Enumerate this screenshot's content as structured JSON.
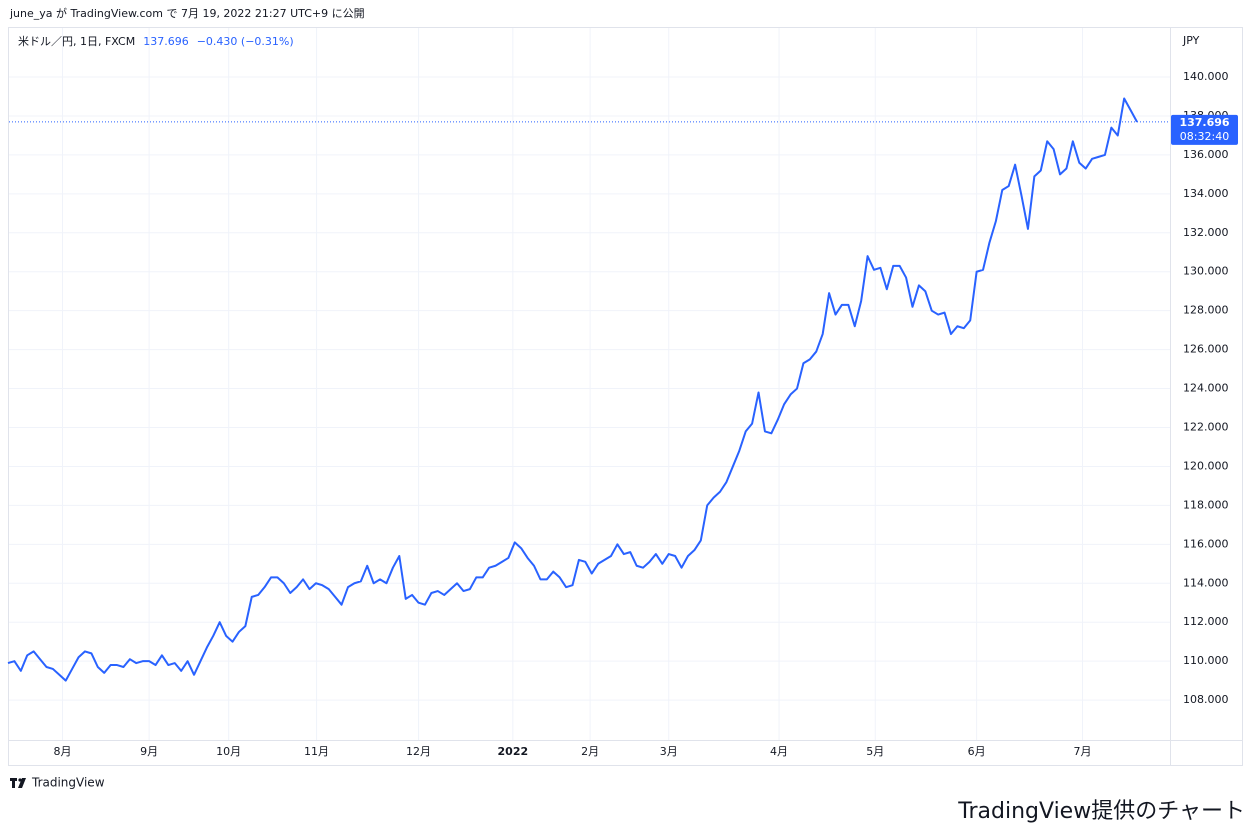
{
  "header": "june_ya が TradingView.com で 7月 19, 2022 21:27 UTC+9 に公開",
  "logo": "TradingView",
  "footer": "TradingView提供のチャート",
  "chart_data": {
    "type": "line",
    "symbol": "米ドル／円, 1日, FXCM",
    "change": "−0.430 (−0.31%)",
    "currency": "JPY",
    "countdown": "08:32:40",
    "color": "#2962ff",
    "grid": true,
    "categories": [
      null,
      null,
      null,
      null,
      null,
      null,
      null,
      null,
      null,
      null,
      null,
      null,
      null,
      null,
      null,
      null,
      null,
      null,
      null,
      null,
      null,
      null,
      null,
      null,
      null,
      null,
      null,
      null,
      null,
      null,
      null,
      null,
      null,
      null,
      null,
      null,
      null,
      null,
      null,
      null,
      null,
      null,
      null,
      null,
      null,
      null,
      null,
      null,
      null,
      null,
      null,
      null,
      null,
      null,
      null,
      null,
      null,
      null,
      null,
      null,
      null,
      null,
      null,
      null,
      null,
      null,
      null,
      null,
      null,
      null,
      null,
      null,
      null,
      null,
      null,
      null,
      null,
      null,
      null,
      null,
      null,
      null,
      null,
      null,
      null,
      null,
      null,
      null,
      null,
      null,
      null,
      null,
      null,
      null,
      null,
      null,
      null,
      null,
      null,
      null,
      null,
      null,
      null,
      null,
      null,
      null,
      null,
      null,
      null,
      null,
      null,
      null,
      null,
      null,
      null,
      null,
      null,
      null,
      null,
      null,
      null,
      null,
      null,
      null,
      null,
      null,
      null,
      null,
      null,
      null,
      null,
      null,
      null,
      null,
      null,
      null,
      null,
      null,
      null,
      null,
      null,
      null,
      null,
      null,
      null,
      null,
      null,
      null,
      null,
      null,
      null,
      null,
      null,
      null,
      null,
      null,
      null,
      null,
      null,
      null,
      null,
      null,
      null,
      null,
      null,
      null,
      null,
      null,
      null,
      null,
      null,
      null,
      null,
      null,
      null,
      null,
      null
    ],
    "values": [
      109.9,
      110.0,
      109.5,
      110.3,
      110.5,
      110.1,
      109.7,
      109.6,
      109.3,
      109.0,
      109.6,
      110.2,
      110.5,
      110.4,
      109.7,
      109.4,
      109.8,
      109.8,
      109.7,
      110.1,
      109.9,
      110.0,
      110.0,
      109.8,
      110.3,
      109.8,
      109.9,
      109.5,
      110.0,
      109.3,
      110.0,
      110.7,
      111.3,
      112.0,
      111.3,
      111.0,
      111.5,
      111.8,
      113.3,
      113.4,
      113.8,
      114.3,
      114.3,
      114.0,
      113.5,
      113.8,
      114.2,
      113.7,
      114.0,
      113.9,
      113.7,
      113.3,
      112.9,
      113.8,
      114.0,
      114.1,
      114.9,
      114.0,
      114.2,
      114.0,
      114.8,
      115.4,
      113.2,
      113.4,
      113.0,
      112.9,
      113.5,
      113.6,
      113.4,
      113.7,
      114.0,
      113.6,
      113.7,
      114.3,
      114.3,
      114.8,
      114.9,
      115.1,
      115.3,
      116.1,
      115.8,
      115.3,
      114.9,
      114.2,
      114.2,
      114.6,
      114.3,
      113.8,
      113.9,
      115.2,
      115.1,
      114.5,
      115.0,
      115.2,
      115.4,
      116.0,
      115.5,
      115.6,
      114.9,
      114.8,
      115.1,
      115.5,
      115.0,
      115.5,
      115.4,
      114.8,
      115.4,
      115.7,
      116.2,
      118.0,
      118.4,
      118.7,
      119.2,
      120.0,
      120.8,
      121.8,
      122.2,
      123.8,
      121.8,
      121.7,
      122.4,
      123.2,
      123.7,
      124.0,
      125.3,
      125.5,
      125.9,
      126.8,
      128.9,
      127.8,
      128.3,
      128.3,
      127.2,
      128.5,
      130.8,
      130.1,
      130.2,
      129.1,
      130.3,
      130.3,
      129.7,
      128.2,
      129.3,
      129.0,
      128.0,
      127.8,
      127.9,
      126.8,
      127.2,
      127.1,
      127.5,
      130.0,
      130.1,
      131.5,
      132.6,
      134.2,
      134.4,
      135.5,
      133.9,
      132.2,
      134.9,
      135.2,
      136.7,
      136.3,
      135.0,
      135.3,
      136.7,
      135.6,
      135.3,
      135.8,
      135.9,
      136.0,
      137.4,
      137.0,
      138.9,
      138.3,
      137.696
    ],
    "ylim": [
      105.95,
      142.57
    ],
    "yticks": [
      {
        "value": 108,
        "label": "108.000"
      },
      {
        "value": 110,
        "label": "110.000"
      },
      {
        "value": 112,
        "label": "112.000"
      },
      {
        "value": 114,
        "label": "114.000"
      },
      {
        "value": 116,
        "label": "116.000"
      },
      {
        "value": 118,
        "label": "118.000"
      },
      {
        "value": 120,
        "label": "120.000"
      },
      {
        "value": 122,
        "label": "122.000"
      },
      {
        "value": 124,
        "label": "124.000"
      },
      {
        "value": 126,
        "label": "126.000"
      },
      {
        "value": 128,
        "label": "128.000"
      },
      {
        "value": 130,
        "label": "130.000"
      },
      {
        "value": 132,
        "label": "132.000"
      },
      {
        "value": 134,
        "label": "134.000"
      },
      {
        "value": 136,
        "label": "136.000"
      },
      {
        "value": 138,
        "label": "138.000"
      },
      {
        "value": 140,
        "label": "140.000"
      }
    ],
    "xticks": [
      {
        "value": 8.5,
        "label": "8月"
      },
      {
        "value": 22,
        "label": "9月"
      },
      {
        "value": 34.4,
        "label": "10月"
      },
      {
        "value": 48.1,
        "label": "11月"
      },
      {
        "value": 64,
        "label": "12月"
      },
      {
        "value": 78.7,
        "label": "2022"
      },
      {
        "value": 90.75,
        "label": "2月"
      },
      {
        "value": 103,
        "label": "3月"
      },
      {
        "value": 120.2,
        "label": "4月"
      },
      {
        "value": 135.2,
        "label": "5月"
      },
      {
        "value": 151,
        "label": "6月"
      },
      {
        "value": 167.5,
        "label": "7月"
      }
    ]
  }
}
